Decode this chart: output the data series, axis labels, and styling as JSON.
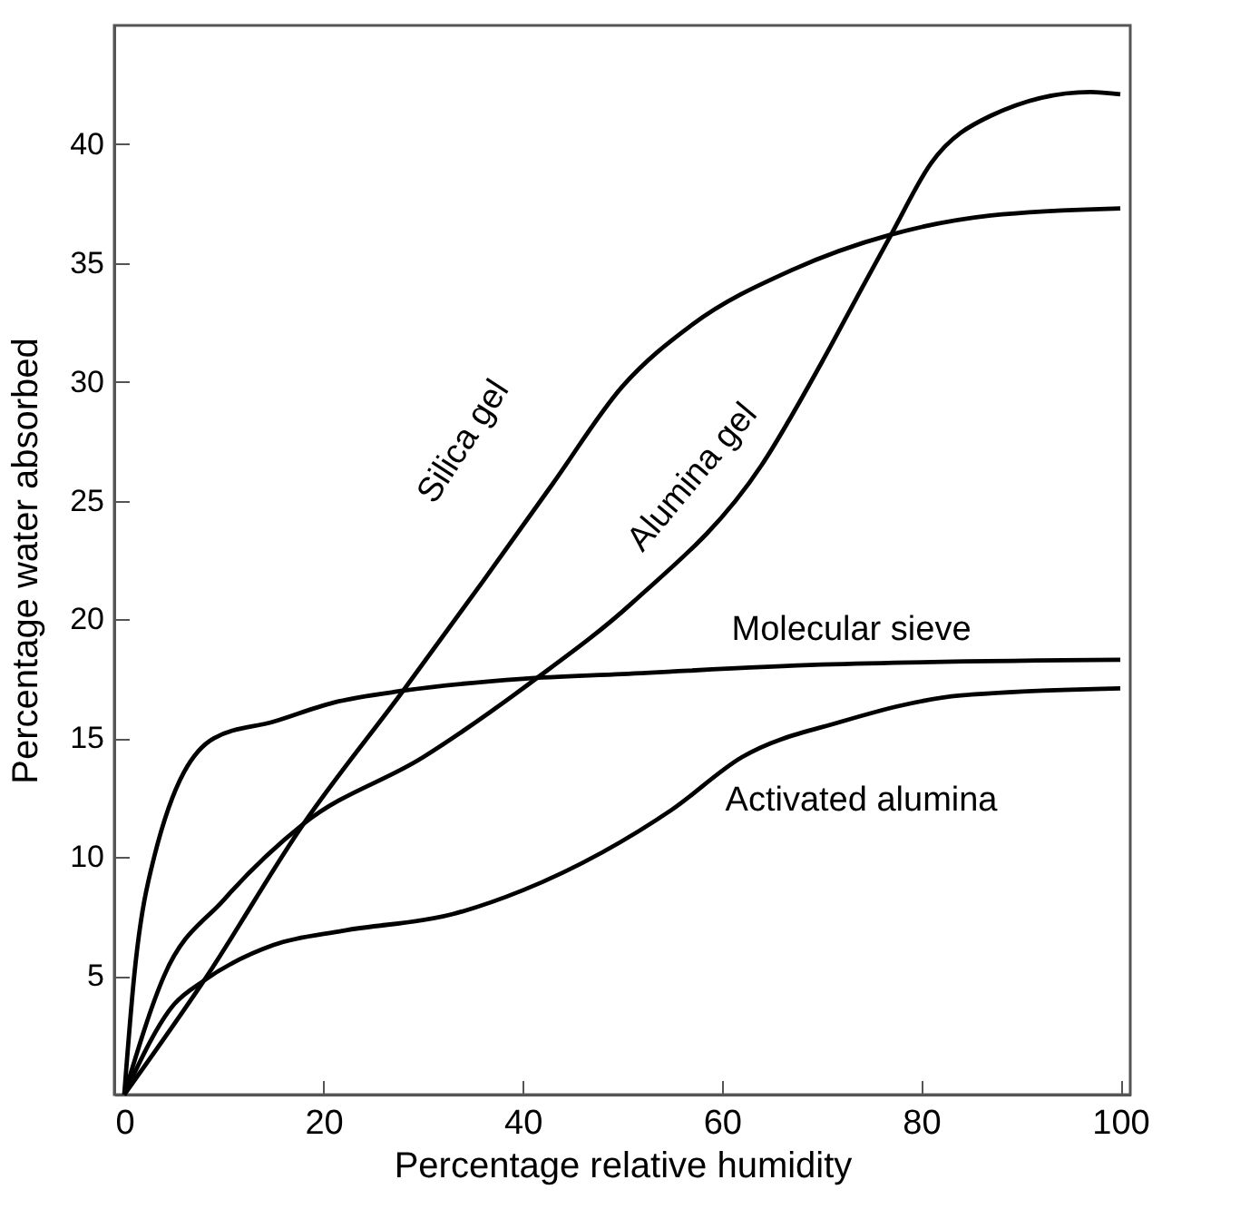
{
  "chart_data": {
    "type": "line",
    "xlabel": "Percentage relative humidity",
    "ylabel": "Percentage water absorbed",
    "xlim": [
      -1,
      101
    ],
    "ylim": [
      0,
      45
    ],
    "xticks": [
      0,
      20,
      40,
      60,
      80,
      100
    ],
    "yticks": [
      5,
      10,
      15,
      20,
      25,
      30,
      35,
      40
    ],
    "grid": false,
    "legend": false,
    "marker": "none",
    "line_style": "solid",
    "series": [
      {
        "name": "Silica gel",
        "color": "#000000",
        "x": [
          0,
          8,
          18,
          28,
          36,
          43,
          50,
          57,
          67,
          77,
          87,
          100
        ],
        "values": [
          0,
          4.8,
          11.4,
          17,
          21.6,
          25.7,
          29.8,
          32.4,
          34.7,
          36.2,
          37,
          37.3
        ]
      },
      {
        "name": "Alumina gel",
        "color": "#000000",
        "x": [
          0,
          4,
          10,
          18,
          30,
          41,
          51,
          64,
          70,
          74,
          77,
          81,
          87,
          97,
          100
        ],
        "values": [
          0,
          5,
          8.2,
          11.4,
          14.2,
          17.4,
          20.7,
          26.5,
          30.8,
          33.9,
          36.2,
          39.2,
          41.2,
          42.2,
          42.1
        ]
      },
      {
        "name": "Molecular sieve",
        "color": "#000000",
        "x": [
          0,
          1,
          3,
          9,
          15,
          21,
          28,
          40,
          50,
          70,
          100
        ],
        "values": [
          0,
          5,
          10,
          15,
          15.7,
          16.5,
          17,
          17.5,
          17.7,
          18.1,
          18.3
        ]
      },
      {
        "name": "Activated alumina",
        "color": "#000000",
        "x": [
          0,
          5,
          8,
          15,
          22,
          33,
          40,
          48,
          55,
          62,
          72,
          84,
          100
        ],
        "values": [
          0,
          3.8,
          4.8,
          6.3,
          6.9,
          7.6,
          8.6,
          10.2,
          12,
          14.2,
          15.7,
          16.8,
          17.1
        ]
      }
    ]
  }
}
